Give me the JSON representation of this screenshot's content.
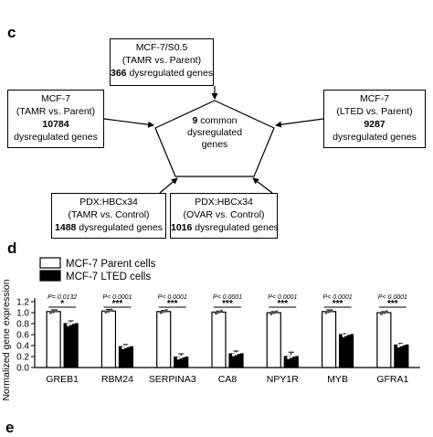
{
  "panel_c": {
    "letter": "c",
    "top_box": {
      "line1": "MCF-7/S0.5",
      "line2": "(TAMR vs. Parent)",
      "count": "366",
      "suffix": " dysregulated genes"
    },
    "left_box": {
      "line1": "MCF-7",
      "line2": "(TAMR vs. Parent)",
      "count": "10784",
      "line4": "dysregulated genes"
    },
    "right_box": {
      "line1": "MCF-7",
      "line2": "(LTED vs. Parent)",
      "count": "9287",
      "line4": "dysregulated genes"
    },
    "bottom_left_box": {
      "line1": "PDX:HBCx34",
      "line2": "(TAMR vs. Control)",
      "count": "1488",
      "suffix": " dysregulated genes"
    },
    "bottom_right_box": {
      "line1": "PDX:HBCx34",
      "line2": "(OVAR vs. Control)",
      "count": "1016",
      "suffix": " dysregulated genes"
    },
    "center": {
      "count": "9",
      "suffix": " common",
      "line2": "dysregulated",
      "line3": "genes"
    }
  },
  "panel_d": {
    "letter": "d"
  },
  "panel_e": {
    "letter": "e"
  },
  "chart_data": {
    "type": "bar",
    "categories": [
      "GREB1",
      "RBM24",
      "SERPINA3",
      "CA8",
      "NPY1R",
      "MYB",
      "GFRA1"
    ],
    "series": [
      {
        "name": "MCF-7 Parent cells",
        "color": "#ffffff",
        "values": [
          1.02,
          1.03,
          1.02,
          1.01,
          1.0,
          1.02,
          1.0
        ],
        "errors": [
          0.03,
          0.03,
          0.02,
          0.02,
          0.02,
          0.03,
          0.02
        ]
      },
      {
        "name": "MCF-7 LTED cells",
        "color": "#000000",
        "values": [
          0.8,
          0.38,
          0.19,
          0.25,
          0.2,
          0.6,
          0.41
        ],
        "errors": [
          0.05,
          0.04,
          0.06,
          0.05,
          0.08,
          0.02,
          0.03
        ]
      }
    ],
    "pvalues": [
      "P= 0.0132",
      "P< 0.0001",
      "P< 0.0001",
      "P< 0.0001",
      "P< 0.0001",
      "P< 0.0001",
      "P< 0.0001"
    ],
    "significance": [
      "*",
      "***",
      "***",
      "***",
      "***",
      "***",
      "***"
    ],
    "ylabel": "Normalized gene expression",
    "yticks": [
      "0.0",
      "0.2",
      "0.4",
      "0.6",
      "0.8",
      "1.0",
      "1.2"
    ],
    "ylim": [
      0,
      1.2
    ],
    "legend_position": "top-left"
  }
}
